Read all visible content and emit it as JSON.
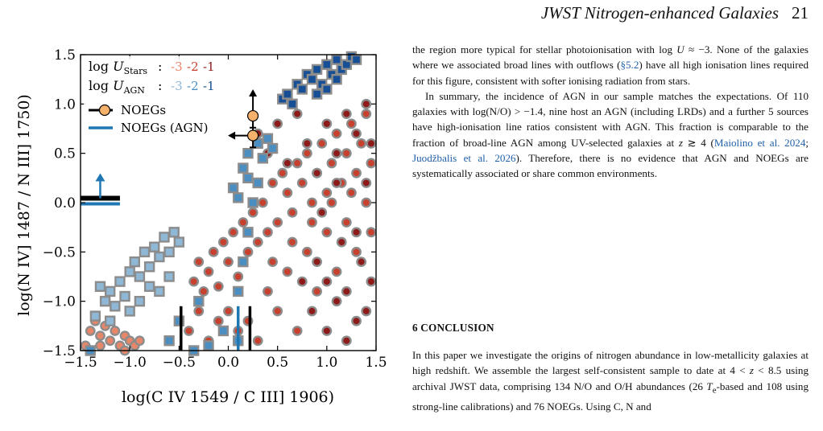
{
  "header": {
    "running_title": "JWST Nitrogen-enhanced Galaxies",
    "page_number": "21"
  },
  "figure": {
    "xlabel": "log(C IV 1549 / C III] 1906)",
    "ylabel": "log(N IV] 1487 / N III] 1750)",
    "legend_u_stars_label": "log U",
    "legend_u_stars_sub": "Stars",
    "legend_u_agn_label": "log U",
    "legend_u_agn_sub": "AGN",
    "legend_sep": ":",
    "u_values": [
      "-3",
      "-2",
      "-1"
    ],
    "u_stars_colors": [
      "#e8866a",
      "#c8412f",
      "#8e1a1a"
    ],
    "u_agn_colors": [
      "#8fb7d6",
      "#4a8ec2",
      "#164f95"
    ],
    "legend_noegs": "NOEGs",
    "legend_noegs_agn": "NOEGs (AGN)",
    "noeg_color": "#f6b26b",
    "agn_line_color": "#1f77b4"
  },
  "chart_data": {
    "type": "scatter",
    "xlabel": "log(C IV 1549 / C III] 1906)",
    "ylabel": "log(N IV] 1487 / N III] 1750)",
    "xlim": [
      -1.5,
      1.5
    ],
    "ylim": [
      -1.5,
      1.5
    ],
    "xticks": [
      -1.5,
      -1.0,
      -0.5,
      0.0,
      0.5,
      1.0,
      1.5
    ],
    "yticks": [
      -1.5,
      -1.0,
      -0.5,
      0.0,
      0.5,
      1.0,
      1.5
    ],
    "xtick_labels": [
      "−1.5",
      "−1.0",
      "−0.5",
      "0.0",
      "0.5",
      "1.0",
      "1.5"
    ],
    "ytick_labels": [
      "−1.5",
      "−1.0",
      "−0.5",
      "0.0",
      "0.5",
      "1.0",
      "1.5"
    ],
    "grid": false,
    "legend_position": "top-left",
    "noegs": [
      {
        "x": 0.25,
        "y": 0.88,
        "xerr_low": 0.0,
        "xerr_high": 0.0,
        "yerr_low": 0.12,
        "yerr_high": 0.0,
        "limit": "y-lower"
      },
      {
        "x": 0.25,
        "y": 0.68,
        "xerr_low": 0.0,
        "xerr_high": 0.0,
        "yerr_low": 0.12,
        "yerr_high": 0.12,
        "limit": "x-lower"
      }
    ],
    "noeg_limit_band": {
      "x0": -1.5,
      "x1": -1.1,
      "y": 0.02,
      "arrow": "up"
    },
    "noeg_x_limits": [
      -0.48,
      0.22
    ],
    "agn_x_limits": [
      0.1
    ],
    "model_stars": [
      {
        "logU": "-3",
        "points": [
          [
            -1.45,
            -1.45
          ],
          [
            -1.4,
            -1.3
          ],
          [
            -1.35,
            -1.2
          ],
          [
            -1.3,
            -1.35
          ],
          [
            -1.25,
            -1.25
          ],
          [
            -1.2,
            -1.4
          ],
          [
            -1.15,
            -1.3
          ],
          [
            -1.1,
            -1.45
          ],
          [
            -1.05,
            -1.35
          ],
          [
            -1.0,
            -1.4
          ],
          [
            -1.3,
            -1.45
          ],
          [
            -0.95,
            -1.45
          ],
          [
            -1.2,
            -1.2
          ],
          [
            -0.9,
            -1.4
          ],
          [
            -1.05,
            -1.5
          ]
        ]
      },
      {
        "logU": "-2",
        "points": [
          [
            -0.35,
            -0.8
          ],
          [
            -0.3,
            -0.6
          ],
          [
            -0.25,
            -0.9
          ],
          [
            -0.2,
            -0.7
          ],
          [
            -0.15,
            -0.5
          ],
          [
            -0.1,
            -0.85
          ],
          [
            -0.05,
            -0.4
          ],
          [
            0.0,
            -0.6
          ],
          [
            0.05,
            -0.3
          ],
          [
            0.1,
            -0.75
          ],
          [
            0.15,
            -0.2
          ],
          [
            0.2,
            -0.5
          ],
          [
            0.25,
            -0.1
          ],
          [
            0.3,
            -0.4
          ],
          [
            0.35,
            0.0
          ],
          [
            0.4,
            -0.3
          ],
          [
            0.45,
            0.2
          ],
          [
            0.5,
            -0.2
          ],
          [
            0.55,
            0.3
          ],
          [
            0.6,
            0.1
          ],
          [
            0.65,
            -0.1
          ],
          [
            0.7,
            0.4
          ],
          [
            0.75,
            0.2
          ],
          [
            0.8,
            0.5
          ],
          [
            0.85,
            0.0
          ],
          [
            0.9,
            0.3
          ],
          [
            0.95,
            0.6
          ],
          [
            1.0,
            0.1
          ],
          [
            1.05,
            0.4
          ],
          [
            1.1,
            0.7
          ],
          [
            1.15,
            0.2
          ],
          [
            1.2,
            0.5
          ],
          [
            1.25,
            0.8
          ],
          [
            1.3,
            0.3
          ],
          [
            1.35,
            0.6
          ],
          [
            1.4,
            0.9
          ],
          [
            1.45,
            0.4
          ],
          [
            0.0,
            -1.1
          ],
          [
            0.1,
            -1.3
          ],
          [
            0.2,
            -1.2
          ],
          [
            0.3,
            -1.4
          ],
          [
            0.4,
            -0.9
          ],
          [
            0.5,
            -1.1
          ],
          [
            0.6,
            -0.7
          ],
          [
            0.7,
            -1.3
          ],
          [
            0.8,
            -0.5
          ],
          [
            0.9,
            -0.9
          ],
          [
            1.0,
            -0.3
          ],
          [
            1.1,
            -0.7
          ],
          [
            1.2,
            -0.2
          ],
          [
            1.3,
            -0.5
          ],
          [
            1.4,
            0.0
          ],
          [
            -0.4,
            -1.3
          ],
          [
            -0.3,
            -1.1
          ],
          [
            -0.2,
            -1.4
          ],
          [
            -0.1,
            -1.2
          ],
          [
            0.45,
            -0.6
          ],
          [
            0.65,
            -0.4
          ],
          [
            0.85,
            -0.2
          ],
          [
            1.05,
            0.0
          ],
          [
            1.25,
            0.1
          ],
          [
            1.45,
            -0.3
          ]
        ]
      },
      {
        "logU": "-1",
        "points": [
          [
            0.3,
            0.7
          ],
          [
            0.4,
            0.5
          ],
          [
            0.5,
            0.8
          ],
          [
            0.6,
            0.4
          ],
          [
            0.7,
            0.9
          ],
          [
            0.8,
            0.6
          ],
          [
            0.9,
            0.3
          ],
          [
            1.0,
            0.8
          ],
          [
            1.1,
            0.5
          ],
          [
            1.2,
            0.9
          ],
          [
            1.3,
            0.7
          ],
          [
            1.4,
            1.0
          ],
          [
            0.9,
            -0.6
          ],
          [
            1.0,
            -0.8
          ],
          [
            1.1,
            -1.0
          ],
          [
            1.2,
            -0.9
          ],
          [
            1.3,
            -1.2
          ],
          [
            1.4,
            -1.1
          ],
          [
            1.45,
            -0.8
          ],
          [
            1.0,
            -1.3
          ],
          [
            1.2,
            -1.4
          ],
          [
            1.35,
            -0.6
          ],
          [
            0.75,
            -0.8
          ],
          [
            0.85,
            -1.1
          ],
          [
            1.15,
            -0.4
          ],
          [
            1.3,
            -0.3
          ],
          [
            1.45,
            0.6
          ],
          [
            1.4,
            0.2
          ],
          [
            0.95,
            -0.1
          ],
          [
            1.1,
            0.2
          ]
        ]
      }
    ],
    "model_agn": [
      {
        "logU": "-3",
        "points": [
          [
            -1.3,
            -0.85
          ],
          [
            -1.2,
            -0.9
          ],
          [
            -1.1,
            -0.8
          ],
          [
            -1.0,
            -0.7
          ],
          [
            -0.95,
            -0.6
          ],
          [
            -0.9,
            -0.75
          ],
          [
            -0.85,
            -0.5
          ],
          [
            -0.8,
            -0.65
          ],
          [
            -0.75,
            -0.45
          ],
          [
            -0.7,
            -0.55
          ],
          [
            -0.65,
            -0.35
          ],
          [
            -0.6,
            -0.5
          ],
          [
            -0.55,
            -0.3
          ],
          [
            -0.5,
            -0.4
          ],
          [
            -1.25,
            -1.0
          ],
          [
            -1.15,
            -1.05
          ],
          [
            -1.05,
            -0.95
          ],
          [
            -1.0,
            -1.1
          ],
          [
            -0.9,
            -1.0
          ],
          [
            -0.8,
            -0.85
          ],
          [
            -0.7,
            -0.9
          ],
          [
            -0.6,
            -0.75
          ],
          [
            -1.35,
            -1.15
          ],
          [
            -1.2,
            -1.2
          ]
        ]
      },
      {
        "logU": "-2",
        "points": [
          [
            -0.6,
            -1.4
          ],
          [
            -0.5,
            -1.2
          ],
          [
            -0.3,
            -1.0
          ],
          [
            -0.2,
            -1.45
          ],
          [
            -0.05,
            -1.3
          ],
          [
            -1.4,
            -1.5
          ],
          [
            0.1,
            -1.4
          ],
          [
            -0.35,
            -1.5
          ],
          [
            0.1,
            -0.9
          ],
          [
            0.15,
            -0.6
          ],
          [
            0.2,
            -0.3
          ],
          [
            0.25,
            0.0
          ],
          [
            0.3,
            0.2
          ],
          [
            0.35,
            0.45
          ],
          [
            0.4,
            0.65
          ],
          [
            0.45,
            0.55
          ],
          [
            0.15,
            0.35
          ],
          [
            0.2,
            0.5
          ],
          [
            0.3,
            0.6
          ],
          [
            0.05,
            0.15
          ],
          [
            0.1,
            0.05
          ],
          [
            0.2,
            0.25
          ]
        ]
      },
      {
        "logU": "-1",
        "points": [
          [
            0.55,
            1.05
          ],
          [
            0.6,
            1.1
          ],
          [
            0.7,
            1.2
          ],
          [
            0.75,
            1.15
          ],
          [
            0.8,
            1.3
          ],
          [
            0.85,
            1.25
          ],
          [
            0.9,
            1.35
          ],
          [
            0.95,
            1.2
          ],
          [
            1.0,
            1.4
          ],
          [
            1.05,
            1.3
          ],
          [
            1.1,
            1.45
          ],
          [
            1.15,
            1.35
          ],
          [
            1.2,
            1.4
          ],
          [
            1.25,
            1.48
          ],
          [
            1.3,
            1.45
          ],
          [
            0.65,
            1.0
          ],
          [
            0.9,
            1.1
          ],
          [
            1.0,
            1.15
          ],
          [
            1.1,
            1.25
          ]
        ]
      }
    ]
  },
  "text": {
    "para1_a": "the region more typical for stellar photoionisation with log ",
    "para1_var": "U",
    "para1_b": " ≈ −3. None of the galaxies where we associated broad lines with outflows (",
    "para1_link": "§5.2",
    "para1_c": ") have all high ionisation lines required for this figure, consistent with softer ionising radiation from stars.",
    "para2_a": "In summary, the incidence of AGN in our sample matches the expectations. Of 110 galaxies with log(N/O) > −1.4, nine host an AGN (including LRDs) and a further 5 sources have high-ionisation line ratios consistent with AGN. This fraction is comparable to the fraction of broad-line AGN among UV-selected galaxies at ",
    "para2_var": "z",
    "para2_b": " ≳ 4 (",
    "para2_cite1": "Maiolino et al. 2024",
    "para2_sep": "; ",
    "para2_cite2": "Juodžbalis et al. 2026",
    "para2_c": "). Therefore, there is no evidence that AGN and NOEGs are systematically associated or share common environments.",
    "section_heading": "6 CONCLUSION",
    "para3_a": "In this paper we investigate the origins of nitrogen abundance in low-metallicity galaxies at high redshift. We assemble the largest self-consistent sample to date at 4 < ",
    "para3_var": "z",
    "para3_b": " < 8.5 using archival JWST data, comprising 134 N/O and O/H abundances (26 ",
    "para3_te": "T",
    "para3_te_sub": "e",
    "para3_c": "-based and 108 using strong-line calibrations) and 76 NOEGs. Using C, N and"
  }
}
